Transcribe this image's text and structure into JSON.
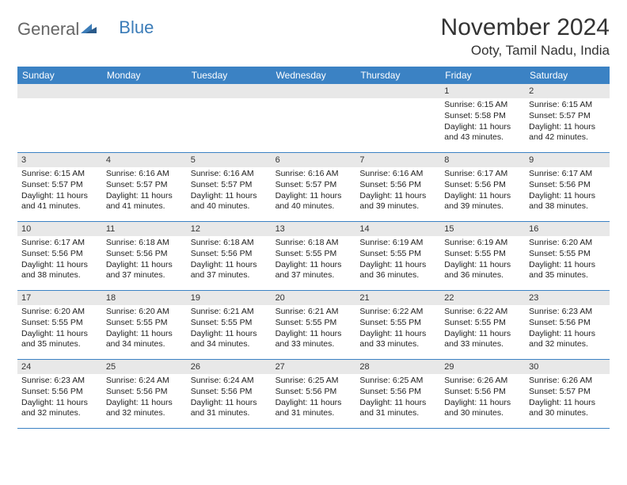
{
  "brand": {
    "text_a": "General",
    "text_b": "Blue",
    "color_a": "#666666",
    "color_b": "#3b7cb8"
  },
  "title": "November 2024",
  "location": "Ooty, Tamil Nadu, India",
  "colors": {
    "header_bg": "#3b82c4",
    "header_text": "#ffffff",
    "daynum_bg": "#e8e8e8",
    "divider": "#3b82c4",
    "text": "#222222"
  },
  "day_names": [
    "Sunday",
    "Monday",
    "Tuesday",
    "Wednesday",
    "Thursday",
    "Friday",
    "Saturday"
  ],
  "weeks": [
    [
      {
        "n": "",
        "sunrise": "",
        "sunset": "",
        "daylight": ""
      },
      {
        "n": "",
        "sunrise": "",
        "sunset": "",
        "daylight": ""
      },
      {
        "n": "",
        "sunrise": "",
        "sunset": "",
        "daylight": ""
      },
      {
        "n": "",
        "sunrise": "",
        "sunset": "",
        "daylight": ""
      },
      {
        "n": "",
        "sunrise": "",
        "sunset": "",
        "daylight": ""
      },
      {
        "n": "1",
        "sunrise": "Sunrise: 6:15 AM",
        "sunset": "Sunset: 5:58 PM",
        "daylight": "Daylight: 11 hours and 43 minutes."
      },
      {
        "n": "2",
        "sunrise": "Sunrise: 6:15 AM",
        "sunset": "Sunset: 5:57 PM",
        "daylight": "Daylight: 11 hours and 42 minutes."
      }
    ],
    [
      {
        "n": "3",
        "sunrise": "Sunrise: 6:15 AM",
        "sunset": "Sunset: 5:57 PM",
        "daylight": "Daylight: 11 hours and 41 minutes."
      },
      {
        "n": "4",
        "sunrise": "Sunrise: 6:16 AM",
        "sunset": "Sunset: 5:57 PM",
        "daylight": "Daylight: 11 hours and 41 minutes."
      },
      {
        "n": "5",
        "sunrise": "Sunrise: 6:16 AM",
        "sunset": "Sunset: 5:57 PM",
        "daylight": "Daylight: 11 hours and 40 minutes."
      },
      {
        "n": "6",
        "sunrise": "Sunrise: 6:16 AM",
        "sunset": "Sunset: 5:57 PM",
        "daylight": "Daylight: 11 hours and 40 minutes."
      },
      {
        "n": "7",
        "sunrise": "Sunrise: 6:16 AM",
        "sunset": "Sunset: 5:56 PM",
        "daylight": "Daylight: 11 hours and 39 minutes."
      },
      {
        "n": "8",
        "sunrise": "Sunrise: 6:17 AM",
        "sunset": "Sunset: 5:56 PM",
        "daylight": "Daylight: 11 hours and 39 minutes."
      },
      {
        "n": "9",
        "sunrise": "Sunrise: 6:17 AM",
        "sunset": "Sunset: 5:56 PM",
        "daylight": "Daylight: 11 hours and 38 minutes."
      }
    ],
    [
      {
        "n": "10",
        "sunrise": "Sunrise: 6:17 AM",
        "sunset": "Sunset: 5:56 PM",
        "daylight": "Daylight: 11 hours and 38 minutes."
      },
      {
        "n": "11",
        "sunrise": "Sunrise: 6:18 AM",
        "sunset": "Sunset: 5:56 PM",
        "daylight": "Daylight: 11 hours and 37 minutes."
      },
      {
        "n": "12",
        "sunrise": "Sunrise: 6:18 AM",
        "sunset": "Sunset: 5:56 PM",
        "daylight": "Daylight: 11 hours and 37 minutes."
      },
      {
        "n": "13",
        "sunrise": "Sunrise: 6:18 AM",
        "sunset": "Sunset: 5:55 PM",
        "daylight": "Daylight: 11 hours and 37 minutes."
      },
      {
        "n": "14",
        "sunrise": "Sunrise: 6:19 AM",
        "sunset": "Sunset: 5:55 PM",
        "daylight": "Daylight: 11 hours and 36 minutes."
      },
      {
        "n": "15",
        "sunrise": "Sunrise: 6:19 AM",
        "sunset": "Sunset: 5:55 PM",
        "daylight": "Daylight: 11 hours and 36 minutes."
      },
      {
        "n": "16",
        "sunrise": "Sunrise: 6:20 AM",
        "sunset": "Sunset: 5:55 PM",
        "daylight": "Daylight: 11 hours and 35 minutes."
      }
    ],
    [
      {
        "n": "17",
        "sunrise": "Sunrise: 6:20 AM",
        "sunset": "Sunset: 5:55 PM",
        "daylight": "Daylight: 11 hours and 35 minutes."
      },
      {
        "n": "18",
        "sunrise": "Sunrise: 6:20 AM",
        "sunset": "Sunset: 5:55 PM",
        "daylight": "Daylight: 11 hours and 34 minutes."
      },
      {
        "n": "19",
        "sunrise": "Sunrise: 6:21 AM",
        "sunset": "Sunset: 5:55 PM",
        "daylight": "Daylight: 11 hours and 34 minutes."
      },
      {
        "n": "20",
        "sunrise": "Sunrise: 6:21 AM",
        "sunset": "Sunset: 5:55 PM",
        "daylight": "Daylight: 11 hours and 33 minutes."
      },
      {
        "n": "21",
        "sunrise": "Sunrise: 6:22 AM",
        "sunset": "Sunset: 5:55 PM",
        "daylight": "Daylight: 11 hours and 33 minutes."
      },
      {
        "n": "22",
        "sunrise": "Sunrise: 6:22 AM",
        "sunset": "Sunset: 5:55 PM",
        "daylight": "Daylight: 11 hours and 33 minutes."
      },
      {
        "n": "23",
        "sunrise": "Sunrise: 6:23 AM",
        "sunset": "Sunset: 5:56 PM",
        "daylight": "Daylight: 11 hours and 32 minutes."
      }
    ],
    [
      {
        "n": "24",
        "sunrise": "Sunrise: 6:23 AM",
        "sunset": "Sunset: 5:56 PM",
        "daylight": "Daylight: 11 hours and 32 minutes."
      },
      {
        "n": "25",
        "sunrise": "Sunrise: 6:24 AM",
        "sunset": "Sunset: 5:56 PM",
        "daylight": "Daylight: 11 hours and 32 minutes."
      },
      {
        "n": "26",
        "sunrise": "Sunrise: 6:24 AM",
        "sunset": "Sunset: 5:56 PM",
        "daylight": "Daylight: 11 hours and 31 minutes."
      },
      {
        "n": "27",
        "sunrise": "Sunrise: 6:25 AM",
        "sunset": "Sunset: 5:56 PM",
        "daylight": "Daylight: 11 hours and 31 minutes."
      },
      {
        "n": "28",
        "sunrise": "Sunrise: 6:25 AM",
        "sunset": "Sunset: 5:56 PM",
        "daylight": "Daylight: 11 hours and 31 minutes."
      },
      {
        "n": "29",
        "sunrise": "Sunrise: 6:26 AM",
        "sunset": "Sunset: 5:56 PM",
        "daylight": "Daylight: 11 hours and 30 minutes."
      },
      {
        "n": "30",
        "sunrise": "Sunrise: 6:26 AM",
        "sunset": "Sunset: 5:57 PM",
        "daylight": "Daylight: 11 hours and 30 minutes."
      }
    ]
  ]
}
